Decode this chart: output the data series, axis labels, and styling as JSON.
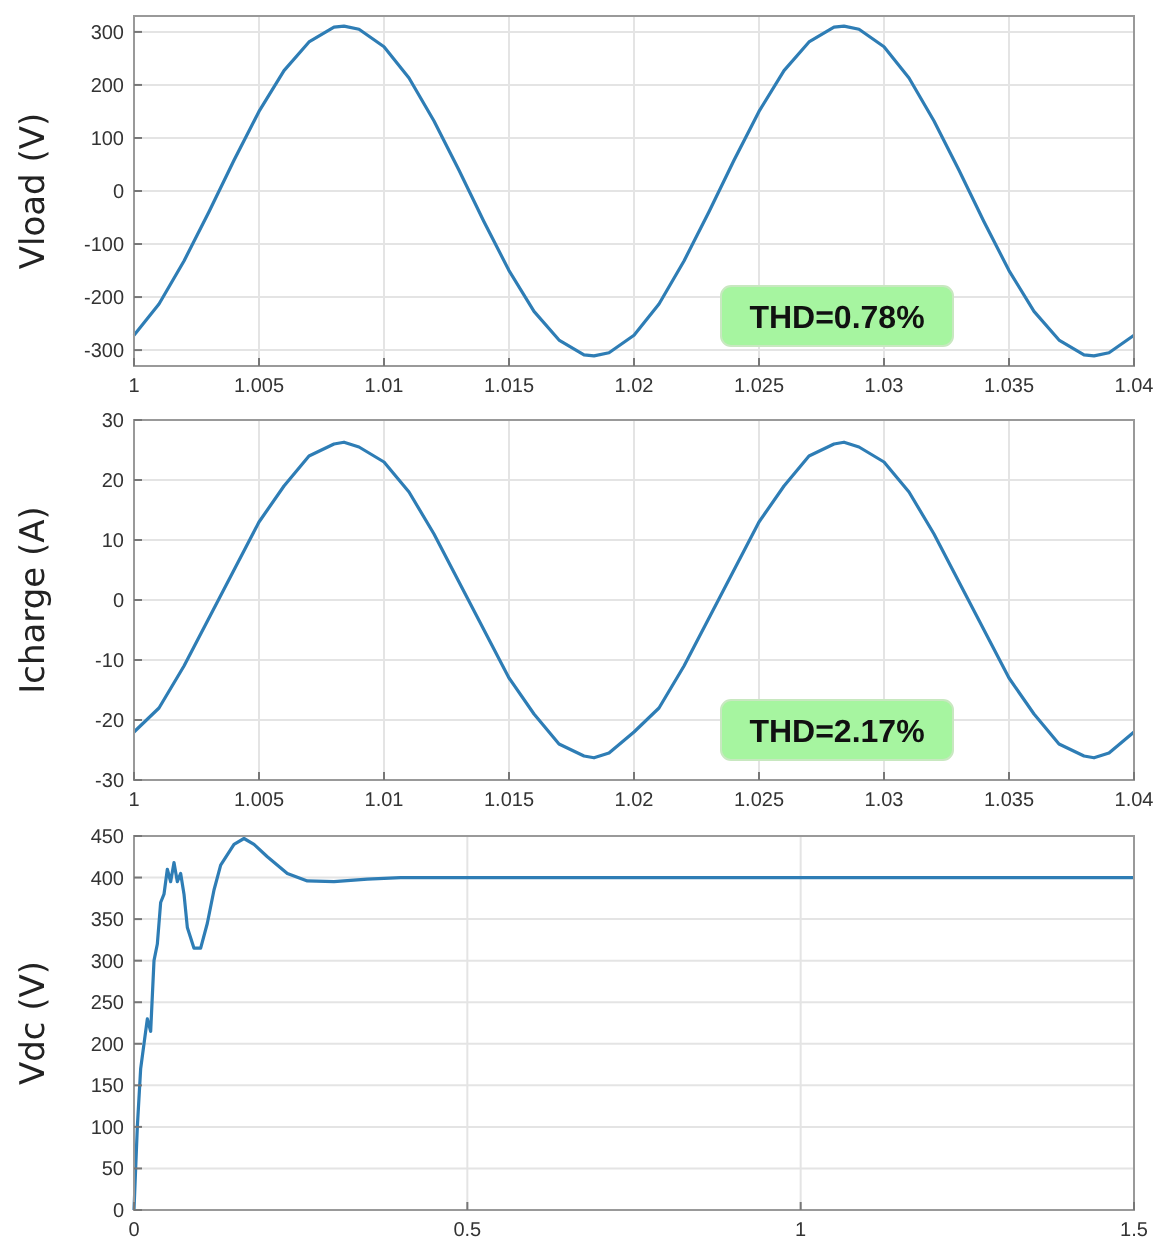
{
  "chart_data": [
    {
      "type": "line",
      "ylabel": "Vload (V)",
      "x": [
        1,
        1.001,
        1.002,
        1.003,
        1.004,
        1.005,
        1.006,
        1.007,
        1.008,
        1.0084,
        1.009,
        1.01,
        1.011,
        1.012,
        1.013,
        1.014,
        1.015,
        1.016,
        1.017,
        1.018,
        1.0184,
        1.019,
        1.02,
        1.021,
        1.022,
        1.023,
        1.024,
        1.025,
        1.026,
        1.027,
        1.028,
        1.0284,
        1.029,
        1.03,
        1.031,
        1.032,
        1.033,
        1.034,
        1.035,
        1.036,
        1.037,
        1.038,
        1.0384,
        1.039,
        1.04
      ],
      "series": [
        {
          "color": "#2e7db5",
          "values": [
            -272,
            -213,
            -132,
            -39,
            58,
            150,
            227,
            281,
            309,
            311,
            305,
            272,
            213,
            132,
            39,
            -58,
            -150,
            -227,
            -281,
            -309,
            -311,
            -305,
            -272,
            -213,
            -132,
            -39,
            58,
            150,
            227,
            281,
            309,
            311,
            305,
            272,
            213,
            132,
            39,
            -58,
            -150,
            -227,
            -281,
            -309,
            -311,
            -305,
            -272
          ]
        }
      ],
      "xlim": [
        1,
        1.04
      ],
      "xticks": [
        1,
        1.005,
        1.01,
        1.015,
        1.02,
        1.025,
        1.03,
        1.035,
        1.04
      ],
      "ylim": [
        -330,
        330
      ],
      "yticks": [
        -300,
        -200,
        -100,
        0,
        100,
        200,
        300
      ],
      "grid": true,
      "annotations": [
        "THD=0.78%"
      ]
    },
    {
      "type": "line",
      "ylabel": "Icharge (A)",
      "x": [
        1,
        1.001,
        1.002,
        1.003,
        1.004,
        1.005,
        1.006,
        1.007,
        1.008,
        1.0084,
        1.009,
        1.01,
        1.011,
        1.012,
        1.013,
        1.014,
        1.015,
        1.016,
        1.017,
        1.018,
        1.0184,
        1.019,
        1.02,
        1.021,
        1.022,
        1.023,
        1.024,
        1.025,
        1.026,
        1.027,
        1.028,
        1.0284,
        1.029,
        1.03,
        1.031,
        1.032,
        1.033,
        1.034,
        1.035,
        1.036,
        1.037,
        1.038,
        1.0384,
        1.039,
        1.04
      ],
      "series": [
        {
          "color": "#2e7db5",
          "values": [
            -22,
            -18,
            -11,
            -3,
            5,
            13,
            19,
            24,
            26,
            26.3,
            25.5,
            23,
            18,
            11,
            3,
            -5,
            -13,
            -19,
            -24,
            -26,
            -26.3,
            -25.5,
            -22,
            -18,
            -11,
            -3,
            5,
            13,
            19,
            24,
            26,
            26.3,
            25.5,
            23,
            18,
            11,
            3,
            -5,
            -13,
            -19,
            -24,
            -26,
            -26.3,
            -25.5,
            -22
          ]
        }
      ],
      "xlim": [
        1,
        1.04
      ],
      "xticks": [
        1,
        1.005,
        1.01,
        1.015,
        1.02,
        1.025,
        1.03,
        1.035,
        1.04
      ],
      "ylim": [
        -30,
        30
      ],
      "yticks": [
        -30,
        -20,
        -10,
        0,
        10,
        20,
        30
      ],
      "grid": true,
      "annotations": [
        "THD=2.17%"
      ]
    },
    {
      "type": "line",
      "ylabel": "Vdc (V)",
      "x": [
        0,
        0.005,
        0.01,
        0.015,
        0.02,
        0.025,
        0.03,
        0.035,
        0.04,
        0.045,
        0.05,
        0.055,
        0.06,
        0.065,
        0.07,
        0.075,
        0.08,
        0.09,
        0.1,
        0.11,
        0.12,
        0.13,
        0.15,
        0.165,
        0.18,
        0.2,
        0.23,
        0.26,
        0.3,
        0.35,
        0.4,
        0.5,
        1.5
      ],
      "series": [
        {
          "color": "#2e7db5",
          "values": [
            0,
            100,
            170,
            200,
            230,
            215,
            300,
            320,
            370,
            380,
            410,
            395,
            418,
            395,
            405,
            380,
            340,
            315,
            315,
            345,
            385,
            415,
            440,
            447,
            440,
            425,
            405,
            396,
            395,
            398,
            400,
            400,
            400
          ]
        }
      ],
      "xlim": [
        0,
        1.5
      ],
      "xticks": [
        0,
        0.5,
        1,
        1.5
      ],
      "ylim": [
        0,
        450
      ],
      "yticks": [
        0,
        50,
        100,
        150,
        200,
        250,
        300,
        350,
        400,
        450
      ],
      "grid": true
    }
  ]
}
